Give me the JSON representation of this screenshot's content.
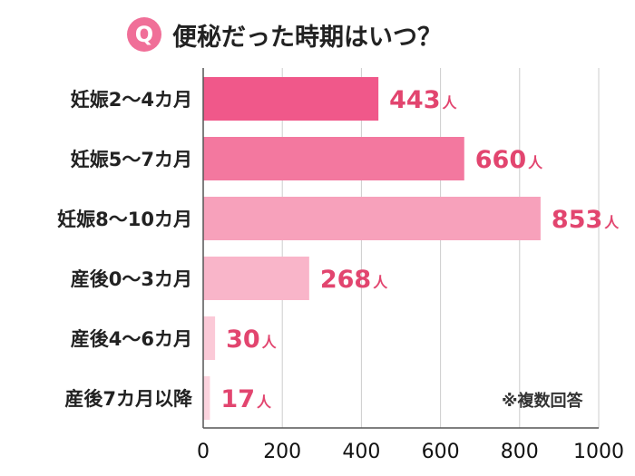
{
  "title": "便秘だった時期はいつ？",
  "badge": "Q",
  "note": "※複数回答",
  "unit": "人",
  "colors": {
    "badge": "#f06f98",
    "value_text": "#e2456f",
    "axis": "#555555",
    "grid": "#cccccc"
  },
  "chart_data": {
    "type": "bar",
    "orientation": "horizontal",
    "categories": [
      "妊娠2〜4カ月",
      "妊娠5〜7カ月",
      "妊娠8〜10カ月",
      "産後0〜3カ月",
      "産後4〜6カ月",
      "産後7カ月以降"
    ],
    "values": [
      443,
      660,
      853,
      268,
      30,
      17
    ],
    "bar_colors": [
      "#f0588a",
      "#f3789f",
      "#f7a1bb",
      "#f9b5c9",
      "#fbc9d7",
      "#fcd3de"
    ],
    "xlim": [
      0,
      1000
    ],
    "xticks": [
      0,
      200,
      400,
      600,
      800,
      1000
    ],
    "grid": true,
    "legend": "none"
  }
}
